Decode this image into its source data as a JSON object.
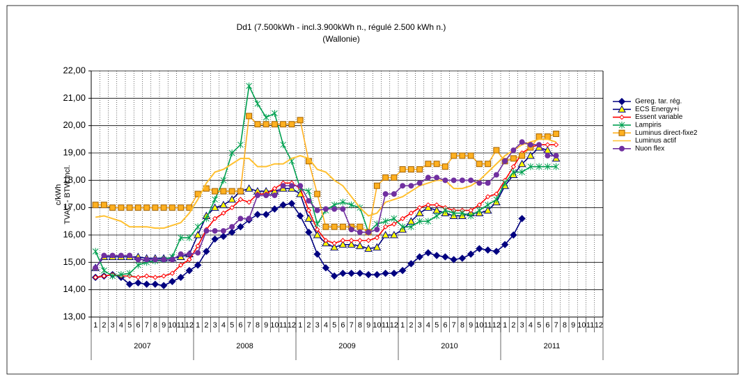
{
  "chart_data": {
    "type": "line",
    "title": [
      "Dd1 (7.500kWh - incl.3.900kWh n., régulé 2.500 kWh n.)",
      "(Wallonie)"
    ],
    "y_label": [
      "c/kWh",
      "TVAC - BTW incl."
    ],
    "categories": [
      "1",
      "2",
      "3",
      "4",
      "5",
      "6",
      "7",
      "8",
      "9",
      "10",
      "11",
      "12",
      "1",
      "2",
      "3",
      "4",
      "5",
      "6",
      "7",
      "8",
      "9",
      "10",
      "11",
      "12",
      "1",
      "2",
      "3",
      "4",
      "5",
      "6",
      "7",
      "8",
      "9",
      "10",
      "11",
      "12",
      "1",
      "2",
      "3",
      "4",
      "5",
      "6",
      "7",
      "8",
      "9",
      "10",
      "11",
      "12",
      "1",
      "2",
      "3",
      "4",
      "5",
      "6",
      "7",
      "8",
      "9",
      "10",
      "11",
      "12"
    ],
    "years": [
      "2007",
      "2008",
      "2009",
      "2010",
      "2011"
    ],
    "ylim": [
      13,
      22
    ],
    "yticks": [
      {
        "value": 13,
        "label": "13,00"
      },
      {
        "value": 14,
        "label": "14,00"
      },
      {
        "value": 15,
        "label": "15,00"
      },
      {
        "value": 16,
        "label": "16,00"
      },
      {
        "value": 17,
        "label": "17,00"
      },
      {
        "value": 18,
        "label": "18,00"
      },
      {
        "value": 19,
        "label": "19,00"
      },
      {
        "value": 20,
        "label": "20,00"
      },
      {
        "value": 21,
        "label": "21,00"
      },
      {
        "value": 22,
        "label": "22,00"
      }
    ],
    "grid": true,
    "legend": "right",
    "series": [
      {
        "name": "Gereg. tar. rég.",
        "color": "#000080",
        "fill": "#000080",
        "marker": "diamond",
        "values": [
          14.45,
          14.5,
          14.55,
          14.45,
          14.2,
          14.25,
          14.2,
          14.2,
          14.15,
          14.3,
          14.45,
          14.7,
          14.9,
          15.4,
          15.85,
          15.95,
          16.1,
          16.3,
          16.55,
          16.75,
          16.75,
          16.95,
          17.1,
          17.15,
          16.7,
          16.1,
          15.3,
          14.8,
          14.5,
          14.6,
          14.6,
          14.6,
          14.55,
          14.55,
          14.6,
          14.6,
          14.7,
          14.95,
          15.2,
          15.35,
          15.25,
          15.2,
          15.1,
          15.15,
          15.3,
          15.5,
          15.45,
          15.4,
          15.65,
          16.0,
          16.6,
          null,
          null,
          null,
          null,
          null,
          null,
          null,
          null,
          null
        ]
      },
      {
        "name": "ECS Energy+i",
        "color": "#000080",
        "fill": "#ffff00",
        "marker": "triangle",
        "values": [
          14.8,
          15.2,
          15.2,
          15.2,
          15.2,
          15.2,
          15.15,
          15.15,
          15.15,
          15.15,
          15.2,
          15.3,
          16.0,
          16.7,
          17.0,
          17.1,
          17.3,
          17.6,
          17.7,
          17.6,
          17.6,
          17.6,
          17.7,
          17.7,
          17.5,
          16.6,
          16.0,
          15.7,
          15.55,
          15.65,
          15.65,
          15.6,
          15.5,
          15.55,
          16.0,
          16.0,
          16.2,
          16.5,
          16.8,
          17.0,
          16.9,
          16.8,
          16.7,
          16.7,
          16.8,
          16.8,
          16.9,
          17.2,
          17.8,
          18.2,
          18.6,
          18.9,
          19.2,
          19.1,
          18.8,
          null,
          null,
          null,
          null,
          null
        ]
      },
      {
        "name": "Essent variable",
        "color": "#ff0000",
        "fill": "#ffffff",
        "marker": "diamond",
        "values": [
          14.45,
          14.5,
          14.55,
          14.5,
          14.5,
          14.45,
          14.5,
          14.45,
          14.5,
          14.6,
          14.9,
          15.1,
          15.6,
          16.2,
          16.6,
          16.8,
          17.0,
          17.3,
          17.2,
          17.5,
          17.5,
          17.7,
          17.9,
          17.9,
          17.7,
          16.9,
          16.2,
          15.8,
          15.7,
          15.8,
          15.8,
          15.8,
          15.8,
          15.9,
          16.3,
          16.4,
          16.6,
          16.8,
          17.0,
          17.1,
          17.1,
          17.0,
          16.9,
          16.9,
          16.9,
          17.1,
          17.4,
          17.5,
          18.0,
          18.5,
          19.0,
          19.2,
          19.3,
          19.3,
          19.3,
          null,
          null,
          null,
          null,
          null
        ]
      },
      {
        "name": "Lampiris",
        "color": "#00a050",
        "fill": "none",
        "marker": "star",
        "values": [
          15.4,
          14.7,
          14.5,
          14.55,
          14.6,
          14.9,
          15.0,
          15.05,
          15.1,
          15.2,
          15.9,
          15.9,
          16.3,
          16.6,
          17.3,
          18.0,
          19.0,
          19.3,
          21.45,
          20.8,
          20.3,
          20.45,
          19.3,
          18.7,
          17.7,
          17.6,
          16.4,
          16.9,
          17.1,
          17.2,
          17.1,
          17.0,
          16.1,
          16.4,
          16.5,
          16.6,
          16.3,
          16.3,
          16.5,
          16.5,
          16.7,
          16.9,
          16.8,
          16.8,
          16.7,
          16.9,
          17.1,
          17.3,
          17.9,
          18.3,
          18.3,
          18.5,
          18.5,
          18.5,
          18.5,
          null,
          null,
          null,
          null,
          null
        ]
      },
      {
        "name": "Luminus direct-fixe2",
        "color": "#ffb020",
        "fill": "#ffb020",
        "marker": "square",
        "values": [
          17.1,
          17.1,
          17.0,
          17.0,
          17.0,
          17.0,
          17.0,
          17.0,
          17.0,
          17.0,
          17.0,
          17.0,
          17.5,
          17.7,
          17.6,
          17.6,
          17.6,
          17.6,
          20.35,
          20.05,
          20.05,
          20.05,
          20.05,
          20.05,
          20.2,
          18.7,
          17.5,
          16.3,
          16.3,
          16.3,
          16.3,
          16.3,
          16.1,
          17.8,
          18.1,
          18.1,
          18.4,
          18.4,
          18.4,
          18.6,
          18.6,
          18.5,
          18.9,
          18.9,
          18.9,
          18.6,
          18.6,
          19.1,
          18.7,
          18.8,
          18.9,
          19.2,
          19.6,
          19.6,
          19.7,
          null,
          null,
          null,
          null,
          null
        ]
      },
      {
        "name": "Luminus actif",
        "color": "#ffc030",
        "fill": "none",
        "marker": "none",
        "values": [
          16.65,
          16.7,
          16.6,
          16.5,
          16.3,
          16.3,
          16.3,
          16.25,
          16.25,
          16.35,
          16.45,
          16.8,
          17.3,
          17.9,
          18.3,
          18.4,
          18.6,
          18.8,
          18.8,
          18.5,
          18.5,
          18.6,
          18.6,
          18.8,
          18.9,
          18.8,
          18.4,
          18.3,
          18.0,
          17.8,
          17.4,
          17.0,
          16.7,
          16.8,
          17.2,
          17.3,
          17.4,
          17.6,
          17.8,
          17.9,
          18.0,
          18.0,
          17.7,
          17.7,
          17.8,
          18.0,
          18.3,
          18.6,
          18.9,
          19.1,
          19.3,
          19.4,
          19.5,
          19.5,
          19.4,
          null,
          null,
          null,
          null,
          null
        ]
      },
      {
        "name": "Nuon flex",
        "color": "#7030a0",
        "fill": "#7030a0",
        "marker": "circle",
        "values": [
          14.8,
          15.25,
          15.25,
          15.25,
          15.25,
          15.1,
          15.1,
          15.1,
          15.1,
          15.1,
          15.3,
          15.3,
          15.35,
          16.15,
          16.15,
          16.15,
          16.3,
          16.6,
          16.6,
          17.45,
          17.45,
          17.45,
          17.8,
          17.8,
          17.8,
          17.25,
          16.9,
          16.95,
          16.95,
          16.95,
          16.2,
          16.1,
          16.1,
          16.2,
          17.5,
          17.5,
          17.8,
          17.8,
          17.9,
          18.1,
          18.1,
          18.0,
          18.0,
          18.0,
          18.0,
          17.9,
          17.9,
          18.2,
          18.7,
          19.1,
          19.4,
          19.3,
          19.3,
          18.9,
          18.9,
          null,
          null,
          null,
          null,
          null
        ]
      }
    ]
  }
}
